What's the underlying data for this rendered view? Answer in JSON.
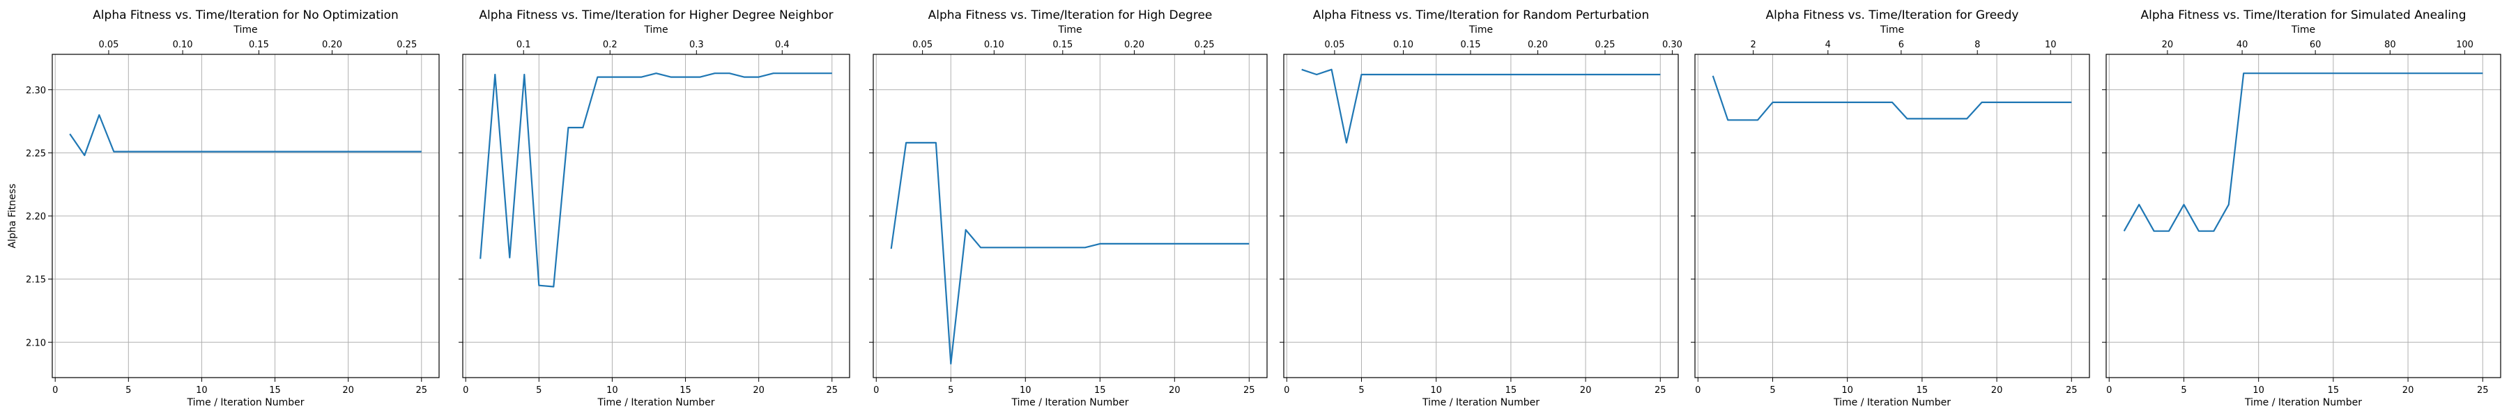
{
  "figure": {
    "shared_ylabel": "Alpha Fitness"
  },
  "chart_data": [
    {
      "type": "line",
      "title": "Alpha Fitness vs. Time/Iteration for No Optimization",
      "xlabel": "Time / Iteration Number",
      "top_xlabel": "Time",
      "ylabel": "Alpha Fitness",
      "xlim": [
        -0.2,
        26.2
      ],
      "ylim": [
        2.072,
        2.328
      ],
      "x_ticks": [
        0,
        5,
        10,
        15,
        20,
        25
      ],
      "y_ticks": [
        "2.10",
        "2.15",
        "2.20",
        "2.25",
        "2.30"
      ],
      "top_ticks": [
        "0.05",
        "0.10",
        "0.15",
        "0.20",
        "0.25"
      ],
      "top_tick_x": [
        3.65,
        8.7,
        13.9,
        18.9,
        24.0
      ],
      "grid": true,
      "color": "#1f77b4",
      "series": [
        {
          "x": [
            1,
            2,
            3,
            4,
            5,
            6,
            7,
            8,
            9,
            10,
            11,
            12,
            13,
            14,
            15,
            16,
            17,
            18,
            19,
            20,
            21,
            22,
            23,
            24,
            25
          ],
          "y": [
            2.265,
            2.248,
            2.28,
            2.251,
            2.251,
            2.251,
            2.251,
            2.251,
            2.251,
            2.251,
            2.251,
            2.251,
            2.251,
            2.251,
            2.251,
            2.251,
            2.251,
            2.251,
            2.251,
            2.251,
            2.251,
            2.251,
            2.251,
            2.251,
            2.251
          ]
        }
      ]
    },
    {
      "type": "line",
      "title": "Alpha Fitness vs. Time/Iteration for Higher Degree Neighbor",
      "xlabel": "Time / Iteration Number",
      "top_xlabel": "Time",
      "ylabel": "",
      "xlim": [
        -0.2,
        26.2
      ],
      "ylim": [
        2.072,
        2.328
      ],
      "x_ticks": [
        0,
        5,
        10,
        15,
        20,
        25
      ],
      "y_ticks": [
        "2.10",
        "2.15",
        "2.20",
        "2.25",
        "2.30"
      ],
      "top_ticks": [
        "0.1",
        "0.2",
        "0.3",
        "0.4"
      ],
      "top_tick_x": [
        3.95,
        9.85,
        15.75,
        21.6
      ],
      "grid": true,
      "color": "#1f77b4",
      "series": [
        {
          "x": [
            1,
            2,
            3,
            4,
            5,
            6,
            7,
            8,
            9,
            10,
            11,
            12,
            13,
            14,
            15,
            16,
            17,
            18,
            19,
            20,
            21,
            22,
            23,
            24,
            25
          ],
          "y": [
            2.166,
            2.312,
            2.167,
            2.312,
            2.145,
            2.144,
            2.27,
            2.27,
            2.31,
            2.31,
            2.31,
            2.31,
            2.313,
            2.31,
            2.31,
            2.31,
            2.313,
            2.313,
            2.31,
            2.31,
            2.313,
            2.313,
            2.313,
            2.313,
            2.313
          ]
        }
      ]
    },
    {
      "type": "line",
      "title": "Alpha Fitness vs. Time/Iteration for High Degree",
      "xlabel": "Time / Iteration Number",
      "top_xlabel": "Time",
      "ylabel": "",
      "xlim": [
        -0.2,
        26.2
      ],
      "ylim": [
        2.072,
        2.328
      ],
      "x_ticks": [
        0,
        5,
        10,
        15,
        20,
        25
      ],
      "y_ticks": [
        "2.10",
        "2.15",
        "2.20",
        "2.25",
        "2.30"
      ],
      "top_ticks": [
        "0.05",
        "0.10",
        "0.15",
        "0.20",
        "0.25"
      ],
      "top_tick_x": [
        3.1,
        7.9,
        12.5,
        17.3,
        22.0
      ],
      "grid": true,
      "color": "#1f77b4",
      "series": [
        {
          "x": [
            1,
            2,
            3,
            4,
            5,
            6,
            7,
            8,
            9,
            10,
            11,
            12,
            13,
            14,
            15,
            16,
            17,
            18,
            19,
            20,
            21,
            22,
            23,
            24,
            25
          ],
          "y": [
            2.174,
            2.258,
            2.258,
            2.258,
            2.083,
            2.189,
            2.175,
            2.175,
            2.175,
            2.175,
            2.175,
            2.175,
            2.175,
            2.175,
            2.178,
            2.178,
            2.178,
            2.178,
            2.178,
            2.178,
            2.178,
            2.178,
            2.178,
            2.178,
            2.178
          ]
        }
      ]
    },
    {
      "type": "line",
      "title": "Alpha Fitness vs. Time/Iteration for Random Perturbation",
      "xlabel": "Time / Iteration Number",
      "top_xlabel": "Time",
      "ylabel": "",
      "xlim": [
        -0.2,
        26.2
      ],
      "ylim": [
        2.072,
        2.328
      ],
      "x_ticks": [
        0,
        5,
        10,
        15,
        20,
        25
      ],
      "y_ticks": [
        "2.10",
        "2.15",
        "2.20",
        "2.25",
        "2.30"
      ],
      "top_ticks": [
        "0.05",
        "0.10",
        "0.15",
        "0.20",
        "0.25",
        "0.30"
      ],
      "top_tick_x": [
        3.2,
        7.8,
        12.3,
        16.8,
        21.3,
        25.8
      ],
      "grid": true,
      "color": "#1f77b4",
      "series": [
        {
          "x": [
            1,
            2,
            3,
            4,
            5,
            6,
            7,
            8,
            9,
            10,
            11,
            12,
            13,
            14,
            15,
            16,
            17,
            18,
            19,
            20,
            21,
            22,
            23,
            24,
            25
          ],
          "y": [
            2.316,
            2.312,
            2.316,
            2.258,
            2.312,
            2.312,
            2.312,
            2.312,
            2.312,
            2.312,
            2.312,
            2.312,
            2.312,
            2.312,
            2.312,
            2.312,
            2.312,
            2.312,
            2.312,
            2.312,
            2.312,
            2.312,
            2.312,
            2.312,
            2.312
          ]
        }
      ]
    },
    {
      "type": "line",
      "title": "Alpha Fitness vs. Time/Iteration for Greedy",
      "xlabel": "Time / Iteration Number",
      "top_xlabel": "Time",
      "ylabel": "",
      "xlim": [
        -0.2,
        26.2
      ],
      "ylim": [
        2.072,
        2.328
      ],
      "x_ticks": [
        0,
        5,
        10,
        15,
        20,
        25
      ],
      "y_ticks": [
        "2.10",
        "2.15",
        "2.20",
        "2.25",
        "2.30"
      ],
      "top_ticks": [
        "2",
        "4",
        "6",
        "8",
        "10"
      ],
      "top_tick_x": [
        3.7,
        8.7,
        13.6,
        18.7,
        23.6
      ],
      "grid": true,
      "color": "#1f77b4",
      "series": [
        {
          "x": [
            1,
            2,
            3,
            4,
            5,
            6,
            7,
            8,
            9,
            10,
            11,
            12,
            13,
            14,
            15,
            16,
            17,
            18,
            19,
            20,
            21,
            22,
            23,
            24,
            25
          ],
          "y": [
            2.311,
            2.276,
            2.276,
            2.276,
            2.29,
            2.29,
            2.29,
            2.29,
            2.29,
            2.29,
            2.29,
            2.29,
            2.29,
            2.277,
            2.277,
            2.277,
            2.277,
            2.277,
            2.29,
            2.29,
            2.29,
            2.29,
            2.29,
            2.29,
            2.29
          ]
        }
      ]
    },
    {
      "type": "line",
      "title": "Alpha Fitness vs. Time/Iteration for Simulated Anealing",
      "xlabel": "Time / Iteration Number",
      "top_xlabel": "Time",
      "ylabel": "",
      "xlim": [
        -0.2,
        26.2
      ],
      "ylim": [
        2.072,
        2.328
      ],
      "x_ticks": [
        0,
        5,
        10,
        15,
        20,
        25
      ],
      "y_ticks": [
        "2.10",
        "2.15",
        "2.20",
        "2.25",
        "2.30"
      ],
      "top_ticks": [
        "20",
        "40",
        "60",
        "80",
        "100"
      ],
      "top_tick_x": [
        3.9,
        8.9,
        13.8,
        18.8,
        23.8
      ],
      "grid": true,
      "color": "#1f77b4",
      "series": [
        {
          "x": [
            1,
            2,
            3,
            4,
            5,
            6,
            7,
            8,
            9,
            10,
            11,
            12,
            13,
            14,
            15,
            16,
            17,
            18,
            19,
            20,
            21,
            22,
            23,
            24,
            25
          ],
          "y": [
            2.188,
            2.209,
            2.188,
            2.188,
            2.209,
            2.188,
            2.188,
            2.209,
            2.313,
            2.313,
            2.313,
            2.313,
            2.313,
            2.313,
            2.313,
            2.313,
            2.313,
            2.313,
            2.313,
            2.313,
            2.313,
            2.313,
            2.313,
            2.313,
            2.313
          ]
        }
      ]
    }
  ]
}
